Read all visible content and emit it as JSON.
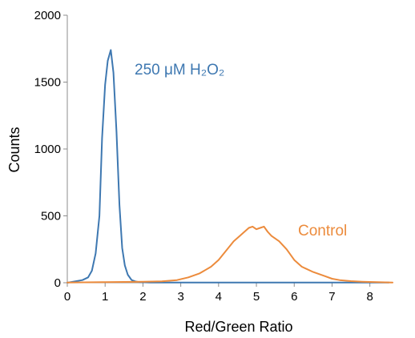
{
  "chart_data": {
    "type": "line",
    "xlabel": "Red/Green Ratio",
    "ylabel": "Counts",
    "xlim": [
      0,
      8.6
    ],
    "ylim": [
      0,
      2000
    ],
    "x_ticks": [
      0,
      1,
      2,
      3,
      4,
      5,
      6,
      7,
      8
    ],
    "y_ticks": [
      0,
      500,
      1000,
      1500,
      2000
    ],
    "grid": false,
    "legend": "none",
    "series": [
      {
        "name": "250 μM H₂O₂",
        "color": "#3e78b1",
        "x": [
          0.0,
          0.2,
          0.4,
          0.55,
          0.65,
          0.75,
          0.85,
          0.92,
          1.0,
          1.07,
          1.15,
          1.22,
          1.3,
          1.38,
          1.45,
          1.52,
          1.6,
          1.7,
          1.8,
          1.9,
          2.2,
          3.0,
          5.0,
          7.0,
          8.5
        ],
        "y": [
          0,
          10,
          20,
          40,
          90,
          220,
          500,
          1080,
          1480,
          1660,
          1740,
          1570,
          1130,
          580,
          260,
          130,
          60,
          20,
          10,
          5,
          2,
          2,
          2,
          2,
          2
        ]
      },
      {
        "name": "Control",
        "color": "#ec8b3c",
        "x": [
          0.0,
          1.0,
          2.0,
          2.5,
          2.9,
          3.2,
          3.5,
          3.8,
          4.0,
          4.2,
          4.4,
          4.6,
          4.8,
          4.9,
          5.0,
          5.1,
          5.2,
          5.3,
          5.4,
          5.6,
          5.8,
          6.0,
          6.2,
          6.5,
          6.8,
          7.0,
          7.2,
          7.5,
          7.8,
          8.2,
          8.6
        ],
        "y": [
          2,
          5,
          8,
          10,
          20,
          40,
          70,
          120,
          170,
          240,
          310,
          360,
          410,
          420,
          400,
          410,
          420,
          380,
          350,
          310,
          250,
          170,
          120,
          80,
          50,
          30,
          20,
          12,
          8,
          4,
          2
        ]
      }
    ]
  },
  "labels": {
    "series_1_label": "250 μM H₂O₂",
    "series_2_label": "Control"
  }
}
